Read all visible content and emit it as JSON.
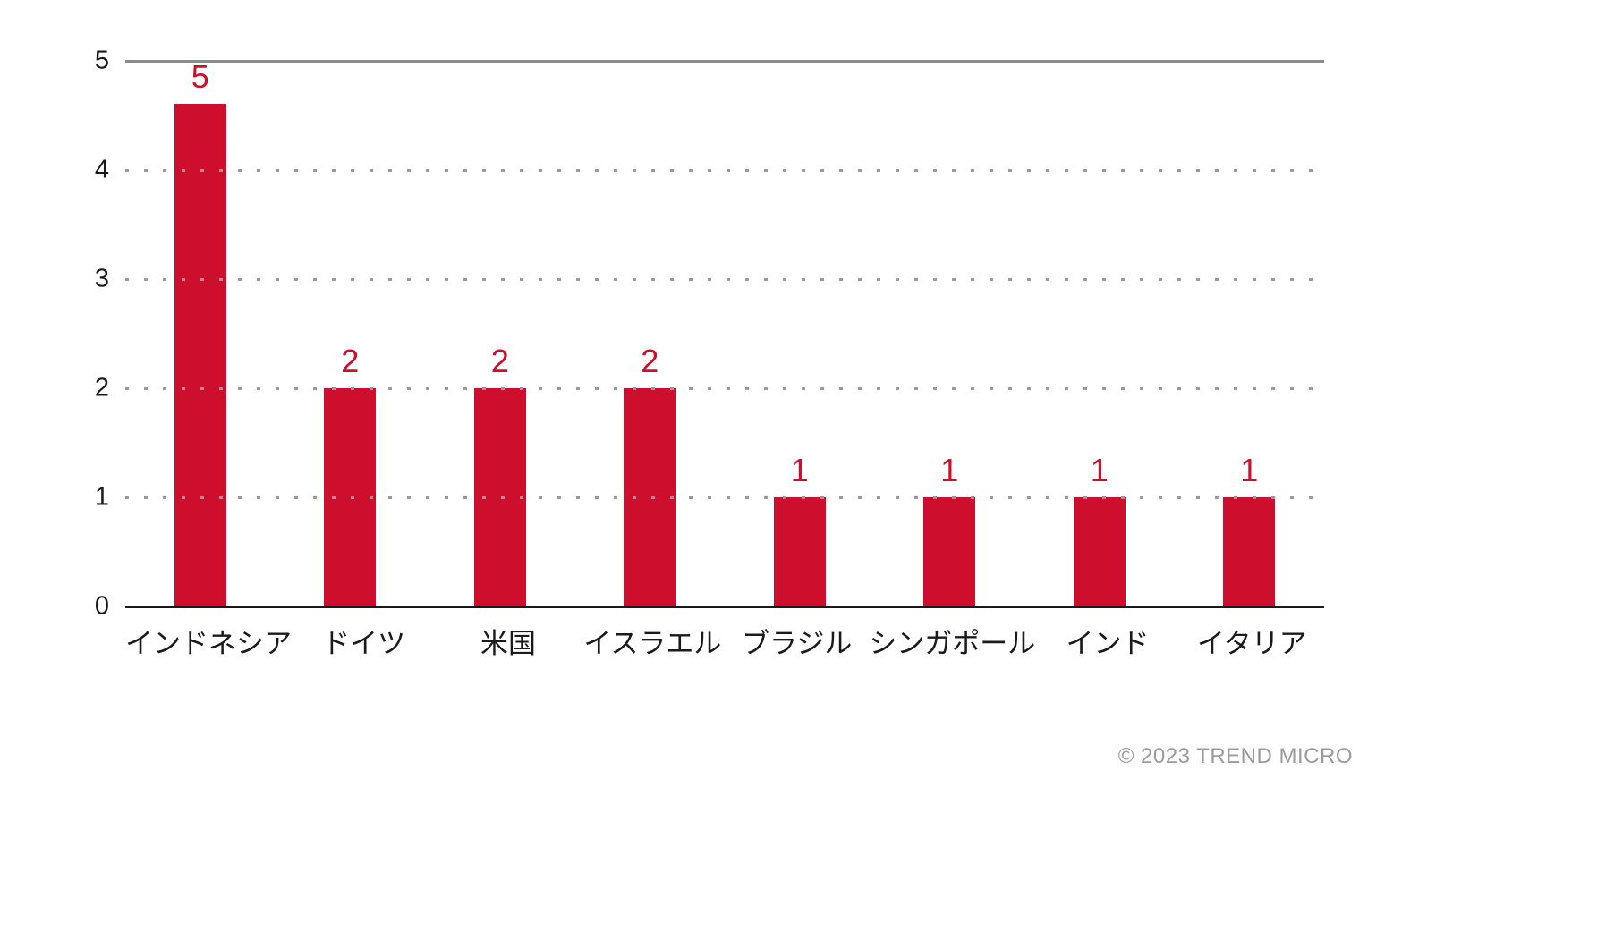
{
  "chart_data": {
    "type": "bar",
    "categories": [
      "インドネシア",
      "ドイツ",
      "米国",
      "イスラエル",
      "ブラジル",
      "シンガポール",
      "インド",
      "イタリア"
    ],
    "values": [
      5,
      2,
      2,
      2,
      1,
      1,
      1,
      1
    ],
    "title": "",
    "xlabel": "",
    "ylabel": "",
    "ylim": [
      0,
      5
    ],
    "yticks": [
      0,
      1,
      2,
      3,
      4,
      5
    ],
    "grid": "horizontal-dotted",
    "legend": "none",
    "bar_color": "#ce0e2d",
    "value_label_color": "#ce0e2d",
    "axis_color": "#1a1a1a",
    "gridline_color": "#9a9a9a"
  },
  "footer": {
    "copyright": "© 2023 TREND MICRO"
  }
}
